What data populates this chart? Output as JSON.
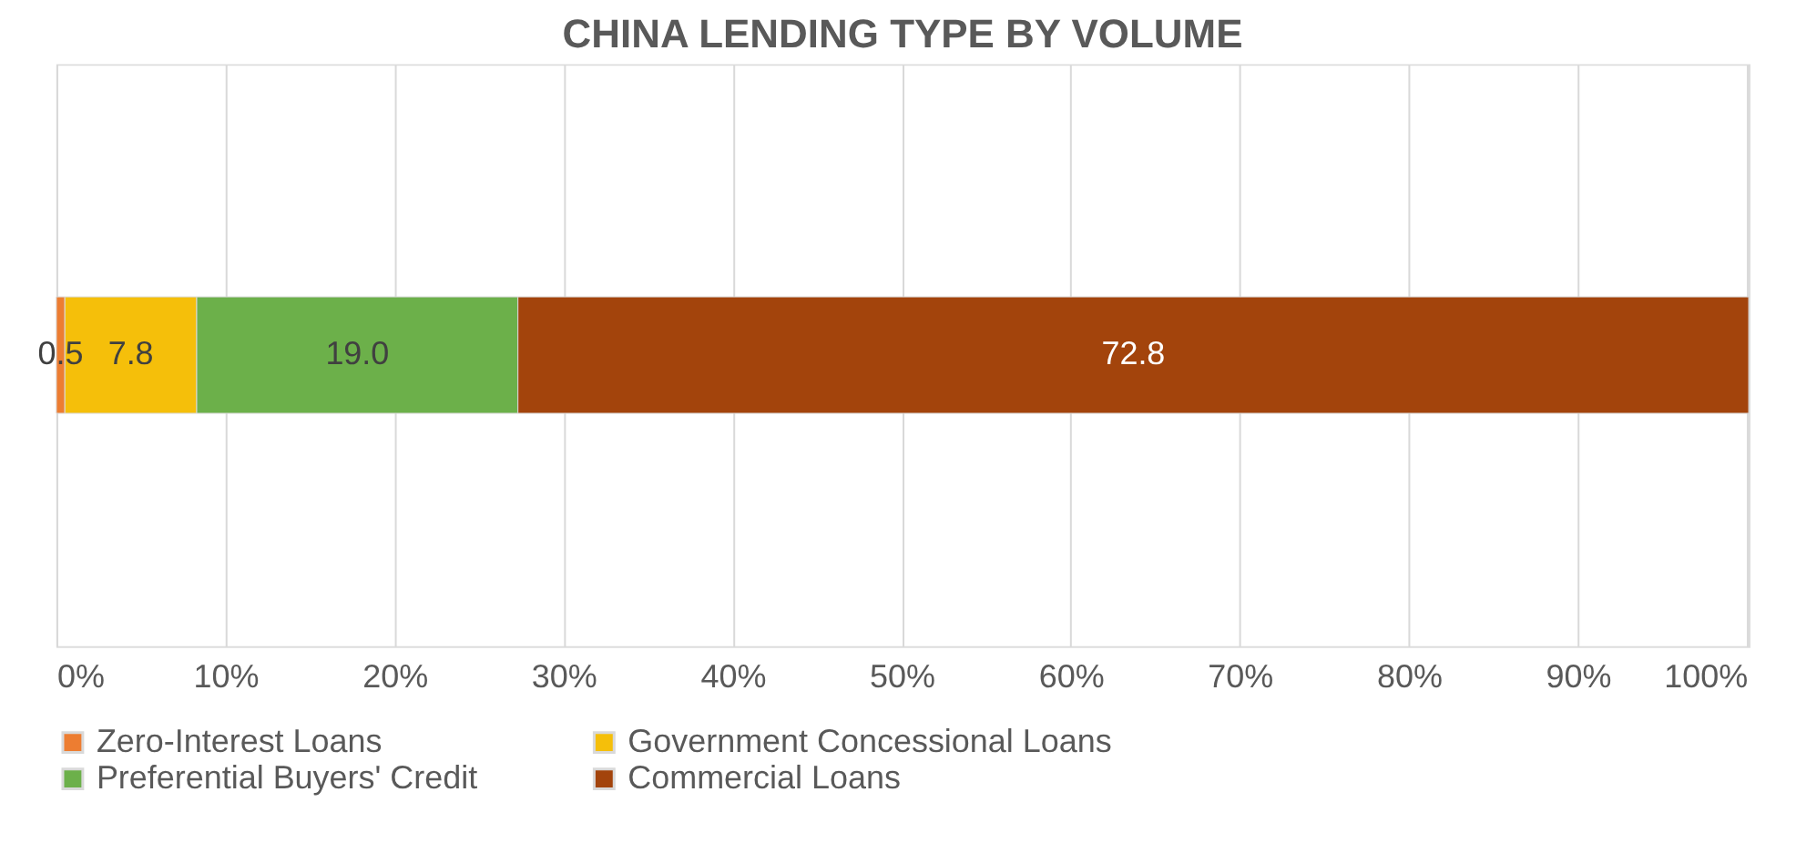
{
  "chart_data": {
    "type": "bar",
    "orientation": "horizontal",
    "stacked": true,
    "title": "CHINA LENDING TYPE BY VOLUME",
    "categories": [
      null
    ],
    "series": [
      {
        "name": "Zero-Interest Loans",
        "color": "#ed7d31",
        "values": [
          0.5
        ],
        "value_labels": [
          "0.5"
        ]
      },
      {
        "name": "Government Concessional Loans",
        "color": "#f5bf0a",
        "values": [
          7.8
        ],
        "value_labels": [
          "7.8"
        ]
      },
      {
        "name": "Preferential Buyers' Credit",
        "color": "#6cb04a",
        "values": [
          19.0
        ],
        "value_labels": [
          "19.0"
        ]
      },
      {
        "name": "Commercial Loans",
        "color": "#a3440c",
        "values": [
          72.8
        ],
        "value_labels": [
          "72.8"
        ]
      }
    ],
    "xlim": [
      0,
      100.1
    ],
    "xticks": [
      {
        "value": 0,
        "label": "0%"
      },
      {
        "value": 10,
        "label": "10%"
      },
      {
        "value": 20,
        "label": "20%"
      },
      {
        "value": 30,
        "label": "30%"
      },
      {
        "value": 40,
        "label": "40%"
      },
      {
        "value": 50,
        "label": "50%"
      },
      {
        "value": 60,
        "label": "60%"
      },
      {
        "value": 70,
        "label": "70%"
      },
      {
        "value": 80,
        "label": "80%"
      },
      {
        "value": 90,
        "label": "90%"
      },
      {
        "value": 100,
        "label": "100%"
      }
    ],
    "grid": "x",
    "legend": "bottom",
    "tick_labels": "x"
  }
}
